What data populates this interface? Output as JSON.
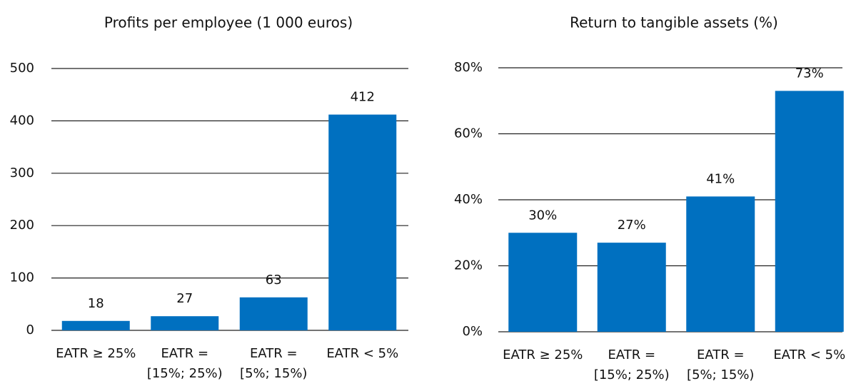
{
  "chart_data": [
    {
      "type": "bar",
      "title": "Profits per employee (1 000 euros)",
      "categories": [
        [
          "EATR ≥ 25%"
        ],
        [
          "EATR =",
          "[15%; 25%)"
        ],
        [
          "EATR =",
          "[5%; 15%)"
        ],
        [
          "EATR < 5%"
        ]
      ],
      "values": [
        18,
        27,
        63,
        412
      ],
      "color": "#0070c0",
      "ylim": [
        0,
        500
      ],
      "yticks": [
        0,
        100,
        200,
        300,
        400,
        500
      ],
      "grid": true
    },
    {
      "type": "bar",
      "title": "Return to tangible assets (%)",
      "categories": [
        [
          "EATR ≥ 25%"
        ],
        [
          "EATR =",
          "[15%; 25%)"
        ],
        [
          "EATR =",
          "[5%; 15%)"
        ],
        [
          "EATR < 5%"
        ]
      ],
      "values": [
        30,
        27,
        41,
        73
      ],
      "value_labels": [
        "30%",
        "27%",
        "41%",
        "73%"
      ],
      "color": "#0070c0",
      "ylim": [
        0,
        80
      ],
      "yticks": [
        {
          "value": 0,
          "label": "0%"
        },
        {
          "value": 20,
          "label": "20%"
        },
        {
          "value": 40,
          "label": "40%"
        },
        {
          "value": 60,
          "label": "60%"
        },
        {
          "value": 80,
          "label": "80%"
        }
      ],
      "grid": true
    }
  ]
}
